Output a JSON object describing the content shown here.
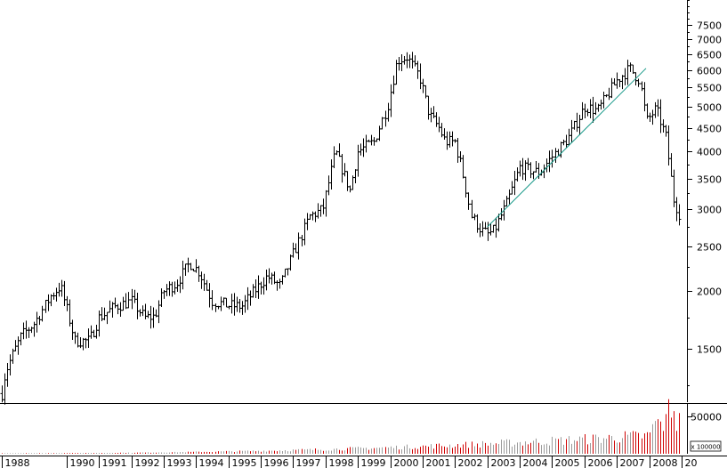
{
  "chart_data": {
    "type": "bar",
    "subtype": "ohlc-monthly",
    "title": "",
    "xlabel": "",
    "ylabel": "",
    "y_scale": "log",
    "ylim": [
      1150,
      8500
    ],
    "y_ticks": [
      1500,
      2000,
      2500,
      3000,
      3500,
      4000,
      4500,
      5000,
      5500,
      6000,
      6500,
      7000,
      7500
    ],
    "x_labels": [
      "1988",
      "1990",
      "1991",
      "1992",
      "1993",
      "1994",
      "1995",
      "1996",
      "1997",
      "1998",
      "1999",
      "2000",
      "2001",
      "2002",
      "2003",
      "2004",
      "2005",
      "2006",
      "2007",
      "2008",
      "20"
    ],
    "x_range": [
      1988.0,
      2009.0
    ],
    "grid": false,
    "colors": {
      "price": "#000000",
      "trendline": "#1a9a8a",
      "volume_up": "#9a9a9a",
      "volume_down": "#d00000"
    },
    "anchors": [
      [
        1988.0,
        1200
      ],
      [
        1988.1,
        1330
      ],
      [
        1988.3,
        1440
      ],
      [
        1988.6,
        1600
      ],
      [
        1989.0,
        1700
      ],
      [
        1989.5,
        1950
      ],
      [
        1989.8,
        2050
      ],
      [
        1990.0,
        1820
      ],
      [
        1990.25,
        1560
      ],
      [
        1990.7,
        1560
      ],
      [
        1991.0,
        1750
      ],
      [
        1991.5,
        1850
      ],
      [
        1992.0,
        1900
      ],
      [
        1992.4,
        1750
      ],
      [
        1992.7,
        1760
      ],
      [
        1993.0,
        2000
      ],
      [
        1993.4,
        2080
      ],
      [
        1993.8,
        2300
      ],
      [
        1994.1,
        2200
      ],
      [
        1994.5,
        1900
      ],
      [
        1995.0,
        1860
      ],
      [
        1995.4,
        1850
      ],
      [
        1995.8,
        2000
      ],
      [
        1996.2,
        2150
      ],
      [
        1996.6,
        2050
      ],
      [
        1997.0,
        2400
      ],
      [
        1997.5,
        2900
      ],
      [
        1997.9,
        3000
      ],
      [
        1998.3,
        4000
      ],
      [
        1998.75,
        3300
      ],
      [
        1999.0,
        4000
      ],
      [
        1999.5,
        4200
      ],
      [
        1999.9,
        5000
      ],
      [
        2000.2,
        6300
      ],
      [
        2000.5,
        6400
      ],
      [
        2000.9,
        5800
      ],
      [
        2001.2,
        4800
      ],
      [
        2001.5,
        4500
      ],
      [
        2001.7,
        4200
      ],
      [
        2002.0,
        4200
      ],
      [
        2002.2,
        3700
      ],
      [
        2002.5,
        2900
      ],
      [
        2002.8,
        2700
      ],
      [
        2003.0,
        2650
      ],
      [
        2003.2,
        2700
      ],
      [
        2003.6,
        3100
      ],
      [
        2004.0,
        3700
      ],
      [
        2004.6,
        3600
      ],
      [
        2005.0,
        3900
      ],
      [
        2005.5,
        4300
      ],
      [
        2006.0,
        5000
      ],
      [
        2006.4,
        4900
      ],
      [
        2007.0,
        5700
      ],
      [
        2007.4,
        6050
      ],
      [
        2007.7,
        5700
      ],
      [
        2007.9,
        4650
      ],
      [
        2008.2,
        4950
      ],
      [
        2008.5,
        4300
      ],
      [
        2008.75,
        3150
      ],
      [
        2008.9,
        2950
      ],
      [
        2009.0,
        2900
      ]
    ],
    "trendline": {
      "x": [
        2003.0,
        2007.9
      ],
      "y": [
        2750,
        6050
      ]
    },
    "volume": {
      "y_ticks": [
        50000
      ],
      "unit_label": "x 100000",
      "ylim": [
        0,
        65000
      ]
    }
  }
}
